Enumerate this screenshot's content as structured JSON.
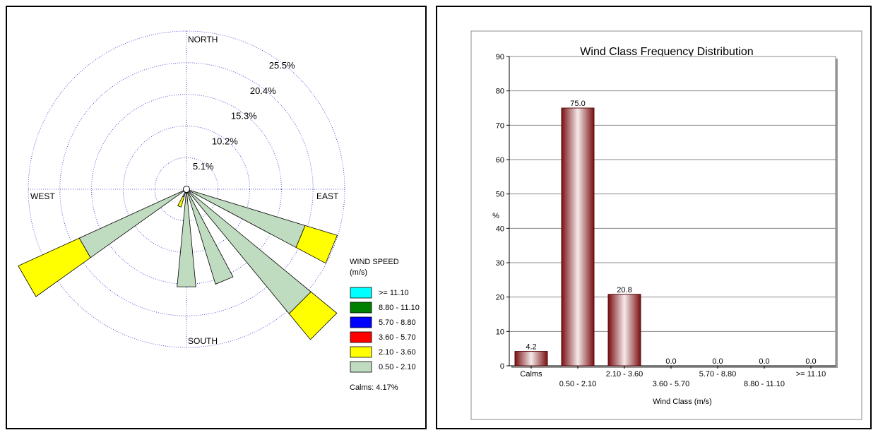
{
  "windrose": {
    "directions": {
      "north": "NORTH",
      "south": "SOUTH",
      "east": "EAST",
      "west": "WEST"
    },
    "ring_labels": [
      "5.1%",
      "10.2%",
      "15.3%",
      "20.4%",
      "25.5%"
    ],
    "ring_values": [
      5.1,
      10.2,
      15.3,
      20.4,
      25.5
    ],
    "legend_title_line1": "WIND SPEED",
    "legend_title_line2": "(m/s)",
    "legend": [
      {
        "label": ">= 11.10",
        "color": "#00ffff"
      },
      {
        "label": "8.80 - 11.10",
        "color": "#008000"
      },
      {
        "label": "5.70 - 8.80",
        "color": "#0000ff"
      },
      {
        "label": "3.60 - 5.70",
        "color": "#ff0000"
      },
      {
        "label": "2.10 - 3.60",
        "color": "#ffff00"
      },
      {
        "label": "0.50 - 2.10",
        "color": "#c0dcc0"
      }
    ],
    "calms": "Calms: 4.17%"
  },
  "barchart": {
    "title": "Wind Class Frequency Distribution",
    "ylabel": "%",
    "xlabel": "Wind Class (m/s)",
    "yticks": [
      "0",
      "10",
      "20",
      "30",
      "40",
      "50",
      "60",
      "70",
      "80",
      "90"
    ],
    "categories": [
      "Calms",
      "0.50 - 2.10",
      "2.10 - 3.60",
      "3.60 - 5.70",
      "5.70 - 8.80",
      "8.80 - 11.10",
      ">= 11.10"
    ],
    "value_labels": [
      "4.2",
      "75.0",
      "20.8",
      "0.0",
      "0.0",
      "0.0",
      "0.0"
    ]
  },
  "chart_data": [
    {
      "type": "other",
      "title": "",
      "unit": "%",
      "ring_values": [
        5.1,
        10.2,
        15.3,
        20.4,
        25.5
      ],
      "speed_classes": [
        ">= 11.10",
        "8.80 - 11.10",
        "5.70 - 8.80",
        "3.60 - 5.70",
        "2.10 - 3.60",
        "0.50 - 2.10"
      ],
      "class_colors": [
        "#00ffff",
        "#008000",
        "#0000ff",
        "#ff0000",
        "#ffff00",
        "#c0dcc0"
      ],
      "petals": [
        {
          "direction_deg": 112.5,
          "segments": [
            {
              "class": "0.50 - 2.10",
              "to": 20.0
            },
            {
              "class": "2.10 - 3.60",
              "to": 25.4
            }
          ]
        },
        {
          "direction_deg": 135,
          "segments": [
            {
              "class": "0.50 - 2.10",
              "to": 26.0
            },
            {
              "class": "2.10 - 3.60",
              "to": 31.4
            }
          ]
        },
        {
          "direction_deg": 157.5,
          "segments": [
            {
              "class": "0.50 - 2.10",
              "to": 16.0
            }
          ]
        },
        {
          "direction_deg": 180,
          "segments": [
            {
              "class": "0.50 - 2.10",
              "to": 15.8
            }
          ]
        },
        {
          "direction_deg": 202.5,
          "segments": [
            {
              "class": "0.50 - 2.10",
              "to": 1.3
            },
            {
              "class": "2.10 - 3.60",
              "to": 3.0
            }
          ]
        },
        {
          "direction_deg": 240,
          "segments": [
            {
              "class": "0.50 - 2.10",
              "to": 19.0
            },
            {
              "class": "2.10 - 3.60",
              "to": 29.8
            }
          ]
        }
      ],
      "calms_percent": 4.17
    },
    {
      "type": "bar",
      "title": "Wind Class Frequency Distribution",
      "xlabel": "Wind Class (m/s)",
      "ylabel": "%",
      "categories": [
        "Calms",
        "0.50 - 2.10",
        "2.10 - 3.60",
        "3.60 - 5.70",
        "5.70 - 8.80",
        "8.80 - 11.10",
        ">= 11.10"
      ],
      "values": [
        4.2,
        75.0,
        20.8,
        0.0,
        0.0,
        0.0,
        0.0
      ],
      "ylim": [
        0,
        90
      ],
      "grid": true
    }
  ]
}
